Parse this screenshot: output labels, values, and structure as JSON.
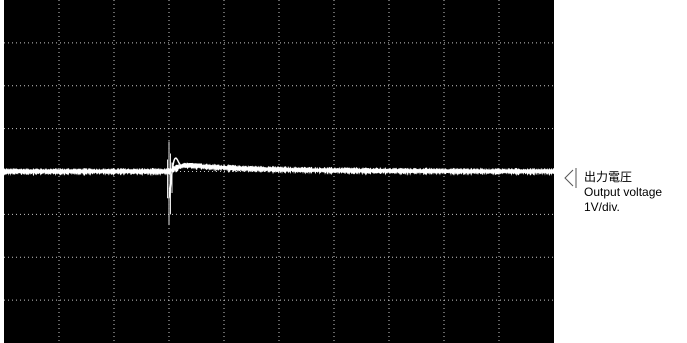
{
  "chart_data": {
    "type": "line",
    "title": "",
    "xlabel": "",
    "ylabel": "",
    "grid": true,
    "grid_divisions": {
      "x": 10,
      "y": 8
    },
    "xlim": [
      0,
      10
    ],
    "ylim": [
      -4,
      4
    ],
    "background_color": "#000000",
    "grid_color": "#c8c8c8",
    "series": [
      {
        "name": "",
        "color": "#ffffff",
        "baseline": 0,
        "noise_band": 0.06,
        "transient": {
          "x": 3.0,
          "spike_up": 0.7,
          "spike_down": -1.25,
          "overshoot": 0.17,
          "settle_x": 4.8
        }
      }
    ]
  },
  "channel_marker": {
    "label_jp": "出力電圧",
    "label_en": "Output voltage",
    "scale": "1V/div."
  }
}
